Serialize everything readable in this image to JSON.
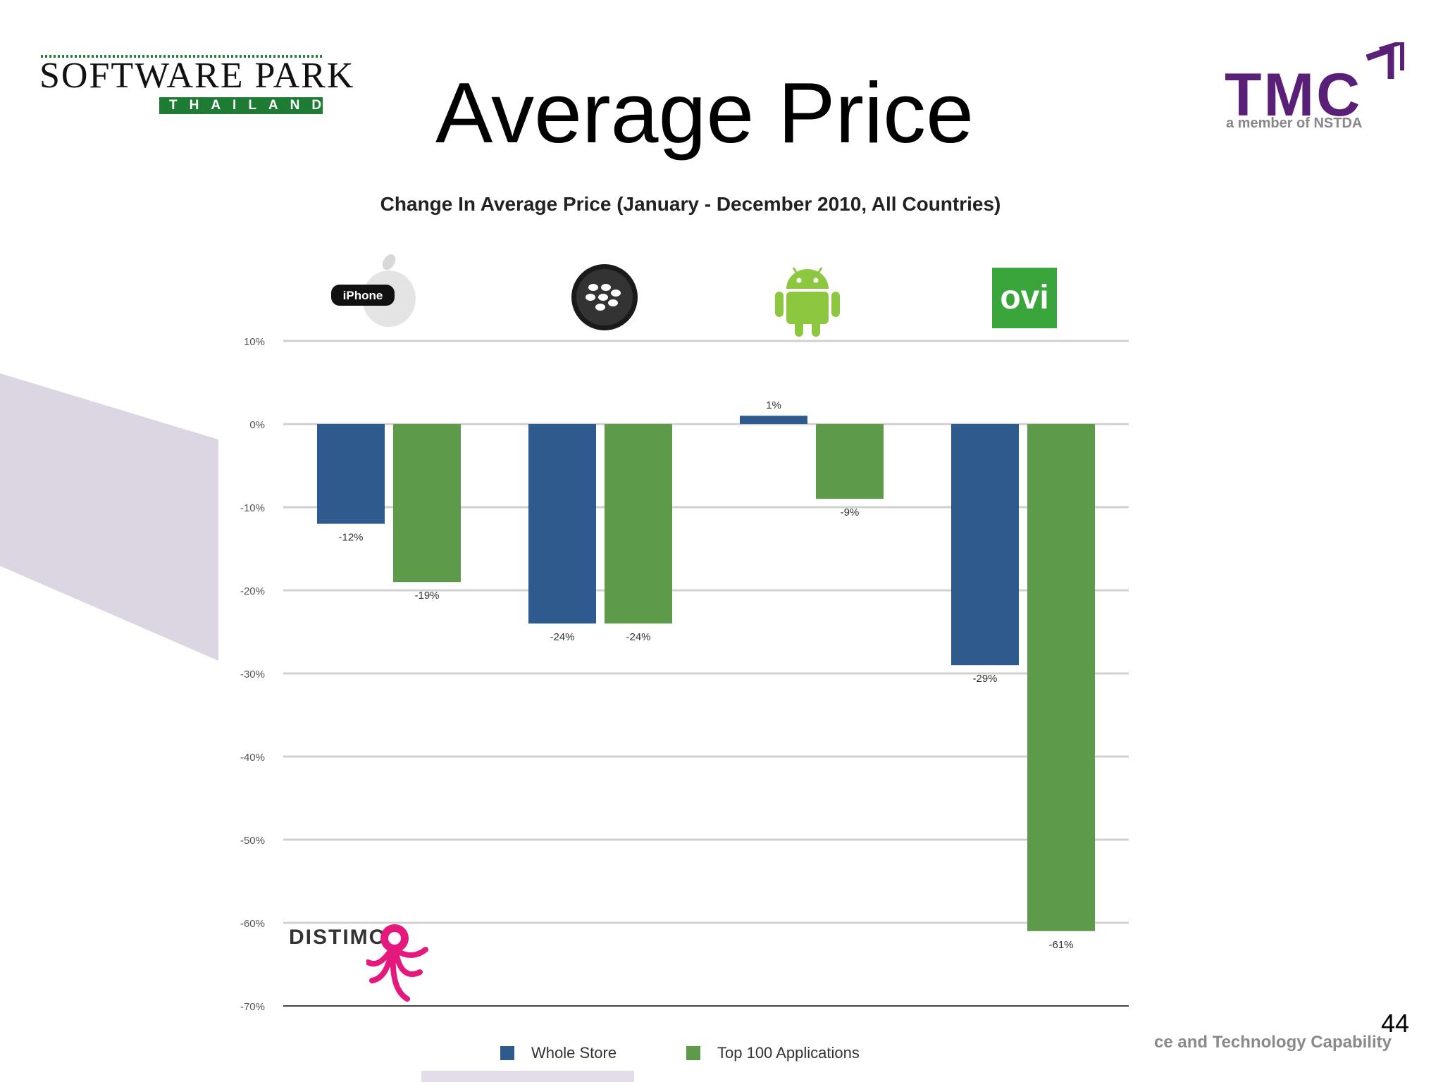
{
  "logos": {
    "software_park_top": "SOFTWARE PARK",
    "software_park_bottom": "THAILAND",
    "tmc_word": "TMC",
    "tmc_sub": "a member of NSTDA",
    "distimo": "DISTIMO",
    "iphone_badge": "iPhone",
    "ovi": "ovi"
  },
  "slide_title": "Average Price",
  "footer_text": "ce and Technology Capability",
  "page_number": "44",
  "colors": {
    "whole_store": "#2e5a8e",
    "top_100": "#5d9a4a",
    "accent_purple": "#5a2078",
    "pink": "#e5197d"
  },
  "platform_icons": [
    "apple-iphone-icon",
    "blackberry-icon",
    "android-icon",
    "ovi-icon"
  ],
  "chart_data": {
    "type": "bar",
    "title": "Change In Average Price (January - December 2010, All Countries)",
    "categories": [
      "iPhone",
      "BlackBerry",
      "Android",
      "Ovi"
    ],
    "series": [
      {
        "name": "Whole Store",
        "values": [
          -12,
          -24,
          1,
          -29
        ],
        "labels": [
          "-12%",
          "-24%",
          "1%",
          "-29%"
        ]
      },
      {
        "name": "Top 100 Applications",
        "values": [
          -19,
          -24,
          -9,
          -61
        ],
        "labels": [
          "-19%",
          "-24%",
          "-9%",
          "-61%"
        ]
      }
    ],
    "ylim": [
      -70,
      10
    ],
    "yticks": [
      10,
      0,
      -10,
      -20,
      -30,
      -40,
      -50,
      -60,
      -70
    ],
    "ytick_labels": [
      "10%",
      "0%",
      "-10%",
      "-20%",
      "-30%",
      "-40%",
      "-50%",
      "-60%",
      "-70%"
    ],
    "xlabel": "",
    "ylabel": "",
    "grid": true,
    "legend": "bottom"
  }
}
